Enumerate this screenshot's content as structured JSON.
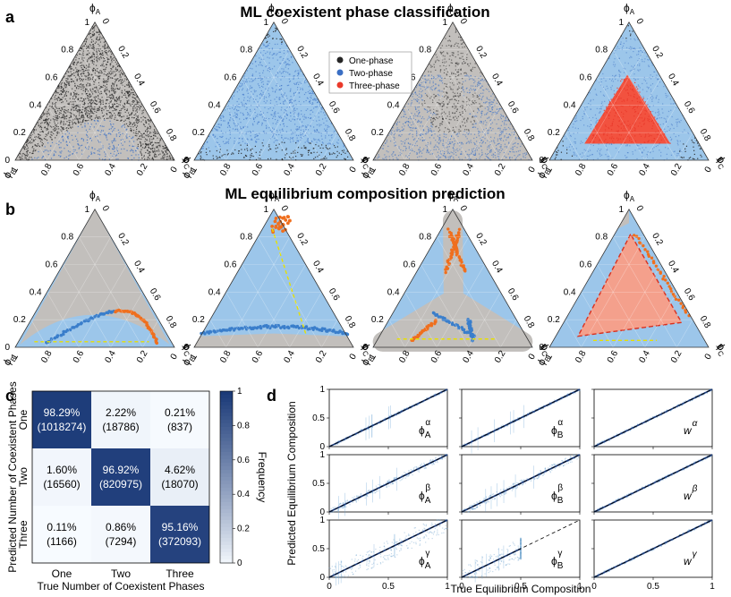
{
  "panel_labels": {
    "a": "a",
    "b": "b",
    "c": "c",
    "d": "d"
  },
  "colors": {
    "one_phase": "#262626",
    "two_phase": "#3b6fc4",
    "three_phase": "#ea3a2b",
    "gray_region": "#c2bfbc",
    "blue_region": "#9cc6ea",
    "orange_points": "#ef6f1e",
    "tie_line": "#e8e000",
    "heat_dark": "#1b3a78"
  },
  "ternary_axis": {
    "phiA": "ϕ",
    "phiA_sub": "A",
    "phiB": "ϕ",
    "phiB_sub": "B",
    "phiC": "ϕ",
    "phiC_sub": "C",
    "ticks": [
      "0",
      "0.2",
      "0.4",
      "0.6",
      "0.8",
      "1"
    ]
  },
  "chart_data": [
    {
      "type": "scatter",
      "title": "ML coexistent phase classification",
      "panel": "a",
      "legend": [
        "One-phase",
        "Two-phase",
        "Three-phase"
      ],
      "legend_position": "top-center",
      "subplots": 4,
      "axes": [
        "ϕA",
        "ϕB",
        "ϕC"
      ],
      "axis_range": [
        0,
        1
      ]
    },
    {
      "type": "scatter",
      "title": "ML equilibrium composition prediction",
      "panel": "b",
      "subplots": 4,
      "axes": [
        "ϕA",
        "ϕB",
        "ϕC"
      ],
      "axis_range": [
        0,
        1
      ]
    },
    {
      "type": "heatmap",
      "panel": "c",
      "xlabel": "True Number of Coexistent Phases",
      "ylabel": "Predicted Number of Coexistent Phases",
      "categories": [
        "One",
        "Two",
        "Three"
      ],
      "cells": [
        [
          {
            "pct": "98.29%",
            "count": "(1018274)",
            "freq": 0.9829
          },
          {
            "pct": "2.22%",
            "count": "(18786)",
            "freq": 0.0222
          },
          {
            "pct": "0.21%",
            "count": "(837)",
            "freq": 0.0021
          }
        ],
        [
          {
            "pct": "1.60%",
            "count": "(16560)",
            "freq": 0.016
          },
          {
            "pct": "96.92%",
            "count": "(820975)",
            "freq": 0.9692
          },
          {
            "pct": "4.62%",
            "count": "(18070)",
            "freq": 0.0462
          }
        ],
        [
          {
            "pct": "0.11%",
            "count": "(1166)",
            "freq": 0.0011
          },
          {
            "pct": "0.86%",
            "count": "(7294)",
            "freq": 0.0086
          },
          {
            "pct": "95.16%",
            "count": "(372093)",
            "freq": 0.9516
          }
        ]
      ],
      "colorbar_label": "Frequency",
      "colorbar_ticks": [
        "0",
        "0.2",
        "0.4",
        "0.6",
        "0.8",
        "1"
      ],
      "colorbar_range": [
        0,
        1
      ]
    },
    {
      "type": "scatter",
      "panel": "d",
      "xlabel": "True Equilibrium Composition",
      "ylabel": "Predicted Equilibrium Composition",
      "x_ticks": [
        "0",
        "0.5",
        "1"
      ],
      "y_ticks": [
        "0",
        "0.5",
        "1"
      ],
      "xlim": [
        0,
        1
      ],
      "ylim": [
        0,
        1
      ],
      "reference_line": "y = x (dashed)",
      "grid_labels": [
        [
          {
            "base": "ϕ",
            "sub": "A",
            "sup": "α"
          },
          {
            "base": "ϕ",
            "sub": "B",
            "sup": "α"
          },
          {
            "base": "w",
            "sub": "",
            "sup": "α"
          }
        ],
        [
          {
            "base": "ϕ",
            "sub": "A",
            "sup": "β"
          },
          {
            "base": "ϕ",
            "sub": "B",
            "sup": "β"
          },
          {
            "base": "w",
            "sub": "",
            "sup": "β"
          }
        ],
        [
          {
            "base": "ϕ",
            "sub": "A",
            "sup": "γ"
          },
          {
            "base": "ϕ",
            "sub": "B",
            "sup": "γ"
          },
          {
            "base": "w",
            "sub": "",
            "sup": "γ"
          }
        ]
      ]
    }
  ]
}
